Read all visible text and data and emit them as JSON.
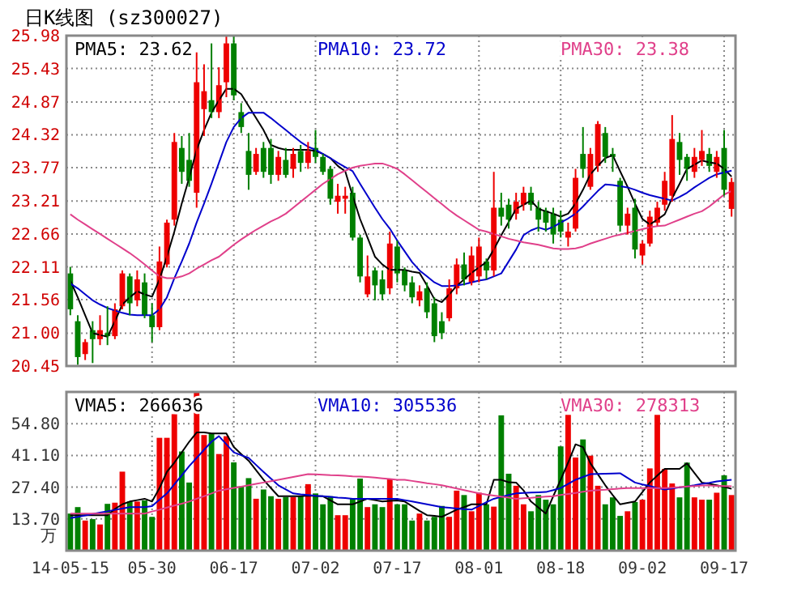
{
  "chart_data": [
    {
      "type": "candlestick",
      "title": "日K线图 (sz300027)",
      "categories": [
        null,
        null,
        null,
        null,
        null,
        null,
        null,
        null,
        null,
        null,
        null,
        null,
        null,
        null,
        null,
        null,
        null,
        null,
        null,
        null,
        null,
        null,
        null,
        null,
        null,
        null,
        null,
        null,
        null,
        null,
        null,
        null,
        null,
        null,
        null,
        null,
        null,
        null,
        null,
        null,
        null,
        null,
        null,
        null,
        null,
        null,
        null,
        null,
        null,
        null,
        null,
        null,
        null,
        null,
        null,
        null,
        null,
        null,
        null,
        null,
        null,
        null,
        null,
        null,
        null,
        null,
        null,
        null,
        null,
        null,
        null,
        null,
        null,
        null,
        null,
        null,
        null,
        null,
        null,
        null,
        null,
        null,
        null,
        null,
        null,
        null,
        null,
        null,
        null,
        null
      ],
      "ohlc": [
        [
          22.0,
          22.11,
          21.3,
          21.4
        ],
        [
          21.2,
          21.3,
          20.47,
          20.6
        ],
        [
          20.65,
          20.9,
          20.55,
          20.85
        ],
        [
          21.05,
          21.2,
          20.5,
          20.9
        ],
        [
          20.9,
          21.3,
          20.8,
          21.05
        ],
        [
          21.0,
          21.45,
          20.8,
          20.95
        ],
        [
          20.95,
          21.5,
          20.9,
          21.4
        ],
        [
          21.45,
          22.05,
          21.4,
          22.0
        ],
        [
          21.95,
          22.0,
          21.3,
          21.5
        ],
        [
          21.55,
          22.05,
          21.45,
          21.9
        ],
        [
          21.85,
          22.0,
          21.25,
          21.3
        ],
        [
          21.3,
          21.5,
          20.85,
          21.1
        ],
        [
          21.1,
          22.45,
          21.05,
          22.2
        ],
        [
          22.15,
          22.9,
          22.1,
          22.85
        ],
        [
          22.9,
          24.35,
          22.8,
          24.2
        ],
        [
          24.1,
          24.3,
          23.5,
          23.7
        ],
        [
          23.9,
          24.35,
          23.45,
          23.55
        ],
        [
          23.35,
          25.7,
          23.1,
          25.2
        ],
        [
          24.75,
          25.5,
          24.3,
          25.05
        ],
        [
          24.9,
          25.85,
          24.6,
          24.7
        ],
        [
          24.7,
          25.45,
          24.6,
          25.15
        ],
        [
          25.2,
          25.98,
          24.95,
          25.85
        ],
        [
          25.85,
          25.98,
          24.9,
          24.98
        ],
        [
          24.7,
          24.85,
          24.35,
          24.45
        ],
        [
          24.05,
          24.35,
          23.4,
          23.65
        ],
        [
          23.7,
          24.1,
          23.65,
          24.0
        ],
        [
          24.1,
          24.2,
          23.6,
          23.7
        ],
        [
          24.1,
          24.25,
          23.5,
          23.65
        ],
        [
          23.65,
          24.05,
          23.55,
          23.95
        ],
        [
          23.9,
          24.1,
          23.6,
          23.65
        ],
        [
          23.75,
          24.1,
          23.6,
          24.0
        ],
        [
          24.05,
          24.15,
          23.7,
          23.85
        ],
        [
          23.85,
          24.2,
          23.75,
          24.05
        ],
        [
          24.1,
          24.4,
          23.85,
          23.95
        ],
        [
          23.95,
          24.0,
          23.65,
          23.7
        ],
        [
          23.75,
          23.8,
          23.15,
          23.25
        ],
        [
          23.2,
          23.5,
          23.0,
          23.3
        ],
        [
          23.25,
          23.45,
          23.0,
          23.3
        ],
        [
          23.35,
          23.45,
          22.55,
          22.6
        ],
        [
          22.6,
          22.65,
          21.85,
          21.95
        ],
        [
          21.65,
          22.3,
          21.6,
          21.95
        ],
        [
          22.05,
          22.1,
          21.55,
          21.8
        ],
        [
          21.9,
          22.05,
          21.55,
          21.65
        ],
        [
          21.75,
          22.7,
          21.65,
          22.5
        ],
        [
          22.45,
          22.55,
          21.85,
          22.0
        ],
        [
          22.05,
          22.1,
          21.7,
          21.8
        ],
        [
          21.85,
          21.95,
          21.5,
          21.6
        ],
        [
          21.55,
          21.8,
          21.45,
          21.7
        ],
        [
          21.75,
          21.85,
          21.25,
          21.35
        ],
        [
          21.5,
          21.6,
          20.85,
          20.95
        ],
        [
          21.2,
          21.35,
          20.9,
          21.0
        ],
        [
          21.25,
          21.9,
          21.2,
          21.75
        ],
        [
          21.75,
          22.25,
          21.65,
          22.15
        ],
        [
          22.15,
          22.35,
          21.8,
          21.9
        ],
        [
          21.85,
          22.45,
          21.8,
          22.3
        ],
        [
          21.95,
          22.6,
          21.85,
          22.45
        ],
        [
          22.2,
          22.25,
          21.9,
          22.05
        ],
        [
          22.05,
          23.7,
          21.95,
          23.1
        ],
        [
          23.1,
          23.35,
          22.8,
          22.95
        ],
        [
          23.15,
          23.25,
          22.75,
          22.9
        ],
        [
          23.0,
          23.35,
          22.9,
          23.2
        ],
        [
          23.15,
          23.45,
          23.05,
          23.35
        ],
        [
          23.35,
          23.45,
          23.05,
          23.15
        ],
        [
          23.1,
          23.2,
          22.7,
          22.9
        ],
        [
          23.05,
          23.1,
          22.7,
          22.85
        ],
        [
          23.0,
          23.1,
          22.5,
          22.65
        ],
        [
          22.9,
          23.05,
          22.6,
          22.7
        ],
        [
          22.6,
          22.85,
          22.45,
          22.7
        ],
        [
          22.75,
          23.75,
          22.7,
          23.6
        ],
        [
          24.0,
          24.45,
          23.6,
          23.75
        ],
        [
          23.45,
          24.1,
          23.4,
          24.0
        ],
        [
          23.8,
          24.55,
          23.7,
          24.5
        ],
        [
          24.35,
          24.45,
          23.85,
          23.95
        ],
        [
          24.0,
          24.1,
          23.7,
          23.95
        ],
        [
          23.55,
          23.6,
          22.7,
          22.8
        ],
        [
          22.8,
          23.1,
          22.65,
          23.0
        ],
        [
          23.1,
          23.25,
          22.25,
          22.4
        ],
        [
          22.3,
          22.55,
          22.15,
          22.5
        ],
        [
          22.5,
          23.05,
          22.45,
          22.95
        ],
        [
          22.85,
          23.2,
          22.8,
          23.1
        ],
        [
          23.15,
          23.7,
          23.05,
          23.55
        ],
        [
          23.3,
          24.65,
          23.2,
          24.25
        ],
        [
          24.2,
          24.35,
          23.65,
          23.9
        ],
        [
          23.95,
          24.0,
          23.55,
          23.75
        ],
        [
          23.7,
          24.1,
          23.6,
          23.95
        ],
        [
          23.9,
          24.4,
          23.8,
          24.05
        ],
        [
          24.0,
          24.1,
          23.7,
          23.8
        ],
        [
          23.7,
          24.05,
          23.6,
          23.95
        ],
        [
          24.1,
          24.4,
          23.3,
          23.4
        ],
        [
          23.08,
          23.6,
          22.95,
          23.53
        ]
      ],
      "colors": [
        "#008000",
        "#008000",
        "#ee0000",
        "#008000",
        "#ee0000",
        "#008000",
        "#ee0000",
        "#ee0000",
        "#008000",
        "#ee0000",
        "#008000",
        "#008000",
        "#ee0000",
        "#ee0000",
        "#ee0000",
        "#008000",
        "#008000",
        "#ee0000",
        "#ee0000",
        "#008000",
        "#ee0000",
        "#ee0000",
        "#008000",
        "#008000",
        "#008000",
        "#ee0000",
        "#008000",
        "#008000",
        "#ee0000",
        "#008000",
        "#ee0000",
        "#008000",
        "#ee0000",
        "#008000",
        "#008000",
        "#008000",
        "#ee0000",
        "#ee0000",
        "#008000",
        "#008000",
        "#ee0000",
        "#008000",
        "#008000",
        "#ee0000",
        "#008000",
        "#008000",
        "#008000",
        "#ee0000",
        "#008000",
        "#008000",
        "#008000",
        "#ee0000",
        "#ee0000",
        "#008000",
        "#ee0000",
        "#ee0000",
        "#008000",
        "#ee0000",
        "#008000",
        "#008000",
        "#ee0000",
        "#ee0000",
        "#008000",
        "#008000",
        "#008000",
        "#008000",
        "#008000",
        "#ee0000",
        "#ee0000",
        "#008000",
        "#ee0000",
        "#ee0000",
        "#008000",
        "#008000",
        "#008000",
        "#ee0000",
        "#008000",
        "#ee0000",
        "#ee0000",
        "#ee0000",
        "#ee0000",
        "#ee0000",
        "#008000",
        "#008000",
        "#ee0000",
        "#ee0000",
        "#008000",
        "#ee0000",
        "#008000",
        "#ee0000"
      ],
      "series": [
        {
          "type": "line",
          "name": "PMA5: 23.62",
          "color": "#000000",
          "values": [
            21.88,
            21.6,
            21.3,
            21.0,
            20.97,
            20.94,
            21.2,
            21.48,
            21.6,
            21.7,
            21.65,
            21.61,
            21.9,
            22.28,
            22.7,
            23.17,
            23.6,
            24.07,
            24.4,
            24.69,
            24.9,
            25.09,
            25.09,
            25.0,
            24.8,
            24.6,
            24.4,
            24.15,
            24.1,
            24.07,
            24.07,
            24.07,
            24.07,
            24.05,
            24.0,
            23.93,
            23.8,
            23.71,
            23.3,
            22.91,
            22.6,
            22.28,
            22.15,
            22.06,
            22.06,
            22.06,
            22.03,
            22.01,
            21.8,
            21.57,
            21.52,
            21.65,
            21.79,
            21.9,
            22.01,
            22.1,
            22.19,
            22.4,
            22.64,
            22.86,
            23.08,
            23.15,
            23.22,
            23.08,
            23.04,
            23.0,
            22.95,
            23.0,
            23.17,
            23.4,
            23.66,
            23.8,
            23.93,
            23.98,
            23.71,
            23.45,
            23.17,
            22.91,
            22.82,
            22.9,
            22.99,
            23.26,
            23.5,
            23.75,
            23.82,
            23.89,
            23.86,
            23.84,
            23.75,
            23.62
          ]
        },
        {
          "type": "line",
          "name": "PMA10: 23.72",
          "color": "#0000cc",
          "values": [
            21.83,
            21.75,
            21.65,
            21.55,
            21.48,
            21.42,
            21.38,
            21.34,
            21.31,
            21.3,
            21.3,
            21.3,
            21.4,
            21.6,
            21.92,
            22.2,
            22.5,
            22.85,
            23.17,
            23.5,
            23.85,
            24.2,
            24.45,
            24.6,
            24.69,
            24.69,
            24.69,
            24.6,
            24.5,
            24.4,
            24.3,
            24.2,
            24.12,
            24.07,
            24.0,
            23.93,
            23.85,
            23.78,
            23.71,
            23.5,
            23.3,
            23.1,
            22.91,
            22.75,
            22.55,
            22.37,
            22.19,
            22.05,
            21.95,
            21.85,
            21.79,
            21.79,
            21.8,
            21.82,
            21.85,
            21.88,
            21.9,
            21.95,
            22.0,
            22.2,
            22.4,
            22.64,
            22.72,
            22.77,
            22.73,
            22.78,
            22.85,
            22.92,
            23.0,
            23.12,
            23.25,
            23.38,
            23.49,
            23.48,
            23.46,
            23.44,
            23.4,
            23.35,
            23.31,
            23.28,
            23.25,
            23.22,
            23.28,
            23.35,
            23.44,
            23.52,
            23.6,
            23.66,
            23.69,
            23.72
          ]
        },
        {
          "type": "line",
          "name": "PMA30: 23.38",
          "color": "#e0408a",
          "values": [
            22.99,
            22.9,
            22.82,
            22.74,
            22.66,
            22.58,
            22.5,
            22.42,
            22.34,
            22.25,
            22.15,
            22.05,
            21.95,
            21.92,
            21.92,
            21.95,
            22.0,
            22.08,
            22.15,
            22.22,
            22.28,
            22.38,
            22.48,
            22.57,
            22.65,
            22.73,
            22.8,
            22.87,
            22.93,
            23.0,
            23.1,
            23.2,
            23.3,
            23.4,
            23.5,
            23.58,
            23.66,
            23.72,
            23.77,
            23.8,
            23.82,
            23.84,
            23.84,
            23.8,
            23.75,
            23.66,
            23.56,
            23.46,
            23.36,
            23.26,
            23.16,
            23.06,
            22.97,
            22.89,
            22.81,
            22.73,
            22.7,
            22.66,
            22.62,
            22.58,
            22.55,
            22.52,
            22.5,
            22.48,
            22.45,
            22.42,
            22.41,
            22.41,
            22.42,
            22.45,
            22.5,
            22.54,
            22.58,
            22.62,
            22.65,
            22.68,
            22.71,
            22.74,
            22.77,
            22.79,
            22.8,
            22.85,
            22.9,
            22.95,
            23.0,
            23.04,
            23.12,
            23.22,
            23.32,
            23.38
          ]
        }
      ],
      "ylim": [
        20.45,
        25.98
      ],
      "yticks": [
        20.45,
        {
          "value": 21,
          "label": "21.00"
        },
        21.56,
        22.11,
        22.66,
        23.21,
        23.77,
        24.32,
        24.87,
        25.43,
        25.98
      ],
      "grid": true,
      "legend": "top",
      "tick_labels": "y"
    },
    {
      "type": "bar",
      "ylabel": "万",
      "categories": [
        "14-05-15",
        null,
        null,
        null,
        null,
        null,
        null,
        null,
        null,
        null,
        null,
        "05-30",
        null,
        null,
        null,
        null,
        null,
        null,
        null,
        null,
        null,
        null,
        "06-17",
        null,
        null,
        null,
        null,
        null,
        null,
        null,
        null,
        null,
        null,
        "07-02",
        null,
        null,
        null,
        null,
        null,
        null,
        null,
        null,
        null,
        null,
        "07-17",
        null,
        null,
        null,
        null,
        null,
        null,
        null,
        null,
        null,
        null,
        "08-01",
        null,
        null,
        null,
        null,
        null,
        null,
        null,
        null,
        null,
        null,
        "08-18",
        null,
        null,
        null,
        null,
        null,
        null,
        null,
        null,
        null,
        null,
        "09-02",
        null,
        null,
        null,
        null,
        null,
        null,
        null,
        null,
        null,
        null,
        "09-17",
        null
      ],
      "values": [
        16.0,
        18.8,
        13.0,
        13.6,
        11.3,
        20.2,
        20.7,
        34.1,
        21.2,
        21.2,
        21.7,
        14.6,
        48.7,
        48.7,
        58.9,
        42.8,
        29.4,
        68.5,
        49.9,
        50.6,
        41.7,
        49.4,
        38.1,
        27.8,
        31.3,
        22.4,
        26.4,
        23.5,
        22.4,
        23.1,
        23.1,
        23.5,
        28.7,
        24.7,
        20.0,
        23.5,
        15.3,
        15.3,
        22.4,
        31.1,
        18.8,
        20.0,
        18.8,
        31.1,
        20.0,
        20.0,
        13.0,
        16.0,
        13.0,
        14.6,
        19.3,
        14.6,
        25.9,
        24.0,
        17.0,
        25.0,
        20.0,
        19.0,
        58.4,
        33.2,
        28.0,
        20.0,
        17.0,
        24.0,
        22.0,
        20.0,
        45.0,
        58.6,
        40.2,
        48.0,
        41.0,
        28.0,
        20.0,
        23.0,
        15.0,
        17.0,
        21.0,
        22.0,
        35.5,
        58.6,
        35.3,
        29.0,
        23.0,
        38.0,
        23.0,
        22.0,
        22.0,
        25.0,
        32.5,
        24.0
      ],
      "colors": [
        "#008000",
        "#008000",
        "#ee0000",
        "#008000",
        "#ee0000",
        "#008000",
        "#ee0000",
        "#ee0000",
        "#008000",
        "#ee0000",
        "#008000",
        "#008000",
        "#ee0000",
        "#ee0000",
        "#ee0000",
        "#008000",
        "#008000",
        "#ee0000",
        "#ee0000",
        "#008000",
        "#ee0000",
        "#ee0000",
        "#008000",
        "#008000",
        "#008000",
        "#ee0000",
        "#008000",
        "#008000",
        "#ee0000",
        "#008000",
        "#ee0000",
        "#008000",
        "#ee0000",
        "#008000",
        "#008000",
        "#008000",
        "#ee0000",
        "#ee0000",
        "#008000",
        "#008000",
        "#ee0000",
        "#008000",
        "#008000",
        "#ee0000",
        "#008000",
        "#008000",
        "#008000",
        "#ee0000",
        "#008000",
        "#008000",
        "#008000",
        "#ee0000",
        "#ee0000",
        "#008000",
        "#ee0000",
        "#ee0000",
        "#008000",
        "#ee0000",
        "#008000",
        "#008000",
        "#ee0000",
        "#ee0000",
        "#008000",
        "#008000",
        "#008000",
        "#008000",
        "#008000",
        "#ee0000",
        "#ee0000",
        "#008000",
        "#ee0000",
        "#ee0000",
        "#008000",
        "#008000",
        "#008000",
        "#ee0000",
        "#008000",
        "#ee0000",
        "#ee0000",
        "#ee0000",
        "#ee0000",
        "#ee0000",
        "#008000",
        "#008000",
        "#ee0000",
        "#ee0000",
        "#008000",
        "#ee0000",
        "#008000",
        "#ee0000"
      ],
      "series": [
        {
          "type": "line",
          "name": "VMA5: 266636",
          "color": "#000000",
          "values": [
            15.3,
            15.3,
            15.3,
            15.3,
            15.3,
            15.3,
            18,
            20,
            21.2,
            21.8,
            22.4,
            21.2,
            27,
            34,
            38,
            42.4,
            47,
            51,
            51,
            50.6,
            50.6,
            50.6,
            44.7,
            41.7,
            38.8,
            34.7,
            30.6,
            27,
            23.5,
            23.5,
            23.5,
            23.5,
            23.8,
            23.6,
            23.5,
            21.7,
            20,
            20,
            20,
            21.2,
            22.4,
            21.8,
            21.2,
            21.5,
            21.7,
            21.2,
            19.2,
            17.2,
            15.3,
            15,
            14.6,
            16.1,
            17.7,
            18.8,
            20,
            20,
            20,
            30.6,
            30.6,
            29.5,
            29.4,
            26,
            21.2,
            18.6,
            16,
            23.5,
            30.6,
            38,
            45.9,
            44.7,
            37.7,
            33,
            28.2,
            24,
            20,
            20.6,
            21.2,
            25.3,
            29.4,
            32.4,
            35.3,
            35.3,
            35.3,
            37.7,
            33.5,
            29.4,
            28.8,
            28.2,
            27.5,
            26.7
          ]
        },
        {
          "type": "line",
          "name": "VMA10: 305536",
          "color": "#0000cc",
          "values": [
            14.1,
            14.6,
            15.2,
            15.8,
            16.4,
            17,
            17.6,
            18.2,
            18.8,
            18.8,
            18.8,
            19.2,
            22,
            24.7,
            28.6,
            32.5,
            36.5,
            40,
            43.5,
            47,
            49.4,
            45.9,
            42.4,
            41.2,
            40,
            37,
            34,
            31.1,
            28.2,
            26.4,
            24.7,
            24.3,
            24,
            23.7,
            23.5,
            23.2,
            22.9,
            22.7,
            22.4,
            22.4,
            22.4,
            22.4,
            22.4,
            22.4,
            22.4,
            21.8,
            21.2,
            20.6,
            20,
            19.4,
            18.8,
            18.5,
            18.2,
            17.9,
            17.7,
            19.3,
            20.9,
            22.4,
            23.2,
            24,
            24.7,
            24.9,
            25.1,
            25.2,
            25.3,
            26.1,
            27,
            28.8,
            30.6,
            31.8,
            33,
            33.1,
            33.2,
            33.3,
            33.4,
            31.4,
            29.4,
            28.6,
            27.9,
            27.1,
            26.4,
            26.8,
            27.3,
            27.7,
            28.2,
            28.8,
            29.3,
            29.9,
            30.2,
            30.6
          ]
        },
        {
          "type": "line",
          "name": "VMA30: 278313",
          "color": "#e0408a",
          "values": [
            16,
            16,
            16,
            16,
            16,
            16,
            16,
            16,
            16,
            16,
            16,
            16.9,
            17.7,
            18.6,
            19.5,
            20.3,
            21.2,
            22.4,
            23.5,
            24.7,
            25.9,
            26.5,
            27.1,
            27.6,
            28.2,
            28.8,
            29.4,
            30,
            30.6,
            31.2,
            31.8,
            32.4,
            33,
            32.9,
            32.8,
            32.6,
            32.5,
            32.3,
            32.1,
            32,
            31.8,
            31.5,
            31.2,
            30.9,
            30.6,
            30.6,
            30.1,
            29.6,
            29.1,
            28.7,
            28.2,
            27.5,
            26.8,
            26.1,
            25.4,
            24.7,
            24.2,
            23.8,
            23.3,
            22.9,
            22.4,
            22.6,
            22.8,
            23.1,
            23.3,
            23.5,
            24,
            24.5,
            24.9,
            25.4,
            25.9,
            26.1,
            26.3,
            26.6,
            26.8,
            27,
            27,
            27,
            27,
            27,
            27,
            27.2,
            27.4,
            27.7,
            27.9,
            28.1,
            28.1,
            28.0,
            27.9,
            27.8
          ]
        }
      ],
      "ylim": [
        0,
        68.5
      ],
      "yticks": [
        {
          "value": 13.7,
          "label": "13.70"
        },
        {
          "value": 27.4,
          "label": "27.40"
        },
        {
          "value": 41.1,
          "label": "41.10"
        },
        {
          "value": 54.8,
          "label": "54.80"
        }
      ],
      "grid": true,
      "legend": "top"
    }
  ]
}
